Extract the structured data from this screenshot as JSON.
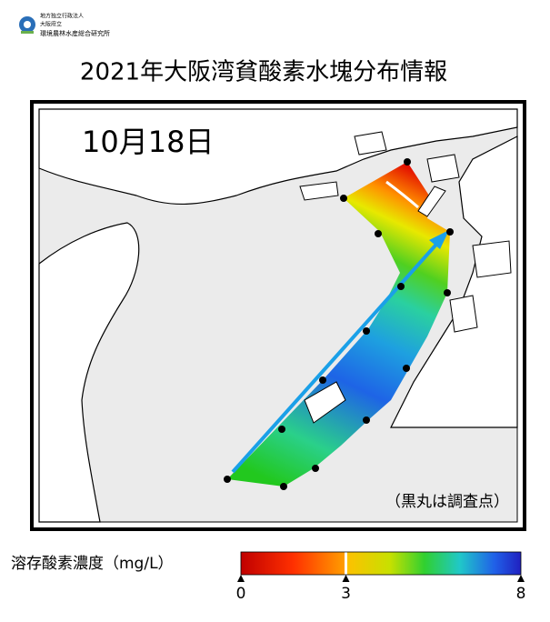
{
  "header": {
    "org_lines": [
      "地方独立行政法人",
      "大阪府立",
      "環境農林水産総合研究所"
    ],
    "title": "2021年大阪湾貧酸素水塊分布情報"
  },
  "map": {
    "date": "10月18日",
    "note": "（黒丸は調査点）"
  },
  "colorbar": {
    "label": "溶存酸素濃度（mg/L）",
    "lim": [
      0,
      8
    ],
    "ticks": [
      0,
      3,
      8
    ]
  }
}
